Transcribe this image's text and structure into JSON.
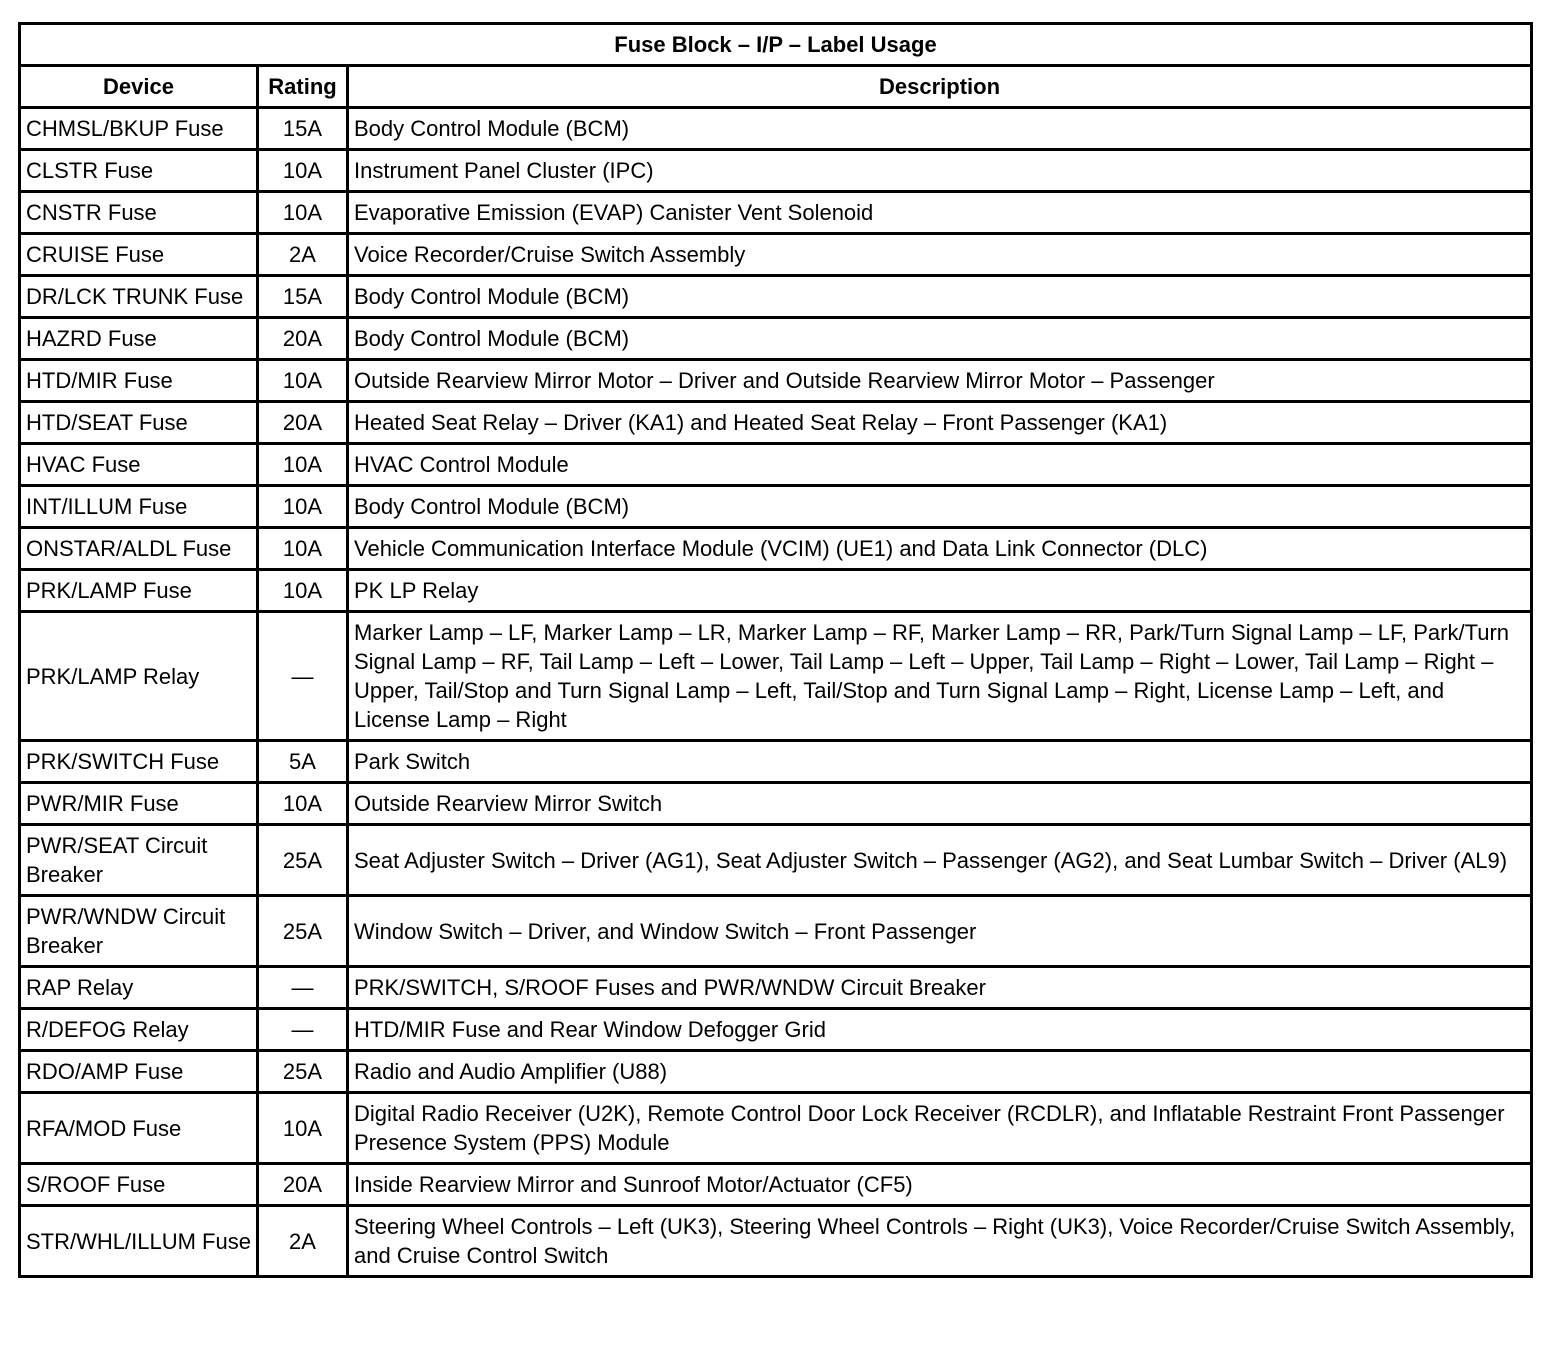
{
  "title": "Fuse Block – I/P – Label Usage",
  "headers": {
    "device": "Device",
    "rating": "Rating",
    "description": "Description"
  },
  "rows": [
    {
      "device": "CHMSL/BKUP Fuse",
      "rating": "15A",
      "description": "Body Control Module (BCM)"
    },
    {
      "device": "CLSTR Fuse",
      "rating": "10A",
      "description": "Instrument Panel Cluster (IPC)"
    },
    {
      "device": "CNSTR Fuse",
      "rating": "10A",
      "description": "Evaporative Emission (EVAP) Canister Vent Solenoid"
    },
    {
      "device": "CRUISE Fuse",
      "rating": "2A",
      "description": "Voice Recorder/Cruise Switch Assembly"
    },
    {
      "device": "DR/LCK TRUNK Fuse",
      "rating": "15A",
      "description": "Body Control Module (BCM)"
    },
    {
      "device": "HAZRD Fuse",
      "rating": "20A",
      "description": "Body Control Module (BCM)"
    },
    {
      "device": "HTD/MIR Fuse",
      "rating": "10A",
      "description": "Outside Rearview Mirror Motor – Driver and Outside Rearview Mirror Motor – Passenger"
    },
    {
      "device": "HTD/SEAT Fuse",
      "rating": "20A",
      "description": "Heated Seat Relay – Driver (KA1) and Heated Seat Relay – Front Passenger (KA1)"
    },
    {
      "device": "HVAC Fuse",
      "rating": "10A",
      "description": "HVAC Control Module"
    },
    {
      "device": "INT/ILLUM Fuse",
      "rating": "10A",
      "description": "Body Control Module (BCM)"
    },
    {
      "device": "ONSTAR/ALDL Fuse",
      "rating": "10A",
      "description": "Vehicle Communication Interface Module (VCIM) (UE1) and Data Link Connector (DLC)"
    },
    {
      "device": "PRK/LAMP Fuse",
      "rating": "10A",
      "description": "PK LP Relay"
    },
    {
      "device": "PRK/LAMP Relay",
      "rating": "—",
      "description": "Marker Lamp – LF, Marker Lamp – LR, Marker Lamp – RF, Marker Lamp – RR, Park/Turn Signal Lamp – LF, Park/Turn Signal Lamp – RF, Tail Lamp – Left – Lower, Tail Lamp – Left – Upper, Tail Lamp – Right – Lower, Tail Lamp – Right – Upper, Tail/Stop and Turn Signal Lamp – Left, Tail/Stop and Turn Signal Lamp – Right, License Lamp – Left, and License Lamp – Right"
    },
    {
      "device": "PRK/SWITCH Fuse",
      "rating": "5A",
      "description": "Park Switch"
    },
    {
      "device": "PWR/MIR Fuse",
      "rating": "10A",
      "description": "Outside Rearview Mirror Switch"
    },
    {
      "device": "PWR/SEAT Circuit Breaker",
      "rating": "25A",
      "description": "Seat Adjuster Switch – Driver (AG1), Seat Adjuster Switch – Passenger (AG2), and Seat Lumbar Switch – Driver (AL9)"
    },
    {
      "device": "PWR/WNDW Circuit Breaker",
      "rating": "25A",
      "description": "Window Switch – Driver, and Window Switch – Front Passenger"
    },
    {
      "device": "RAP Relay",
      "rating": "—",
      "description": "PRK/SWITCH, S/ROOF Fuses and PWR/WNDW Circuit Breaker"
    },
    {
      "device": "R/DEFOG Relay",
      "rating": "—",
      "description": "HTD/MIR Fuse and Rear Window Defogger Grid"
    },
    {
      "device": "RDO/AMP Fuse",
      "rating": "25A",
      "description": "Radio and Audio Amplifier (U88)"
    },
    {
      "device": "RFA/MOD Fuse",
      "rating": "10A",
      "description": "Digital Radio Receiver (U2K), Remote Control Door Lock Receiver (RCDLR), and Inflatable Restraint Front Passenger Presence System (PPS) Module"
    },
    {
      "device": "S/ROOF Fuse",
      "rating": "20A",
      "description": "Inside Rearview Mirror and Sunroof Motor/Actuator (CF5)"
    },
    {
      "device": "STR/WHL/ILLUM Fuse",
      "rating": "2A",
      "description": "Steering Wheel Controls – Left (UK3), Steering Wheel Controls – Right (UK3), Voice Recorder/Cruise Switch Assembly, and Cruise Control Switch"
    }
  ]
}
